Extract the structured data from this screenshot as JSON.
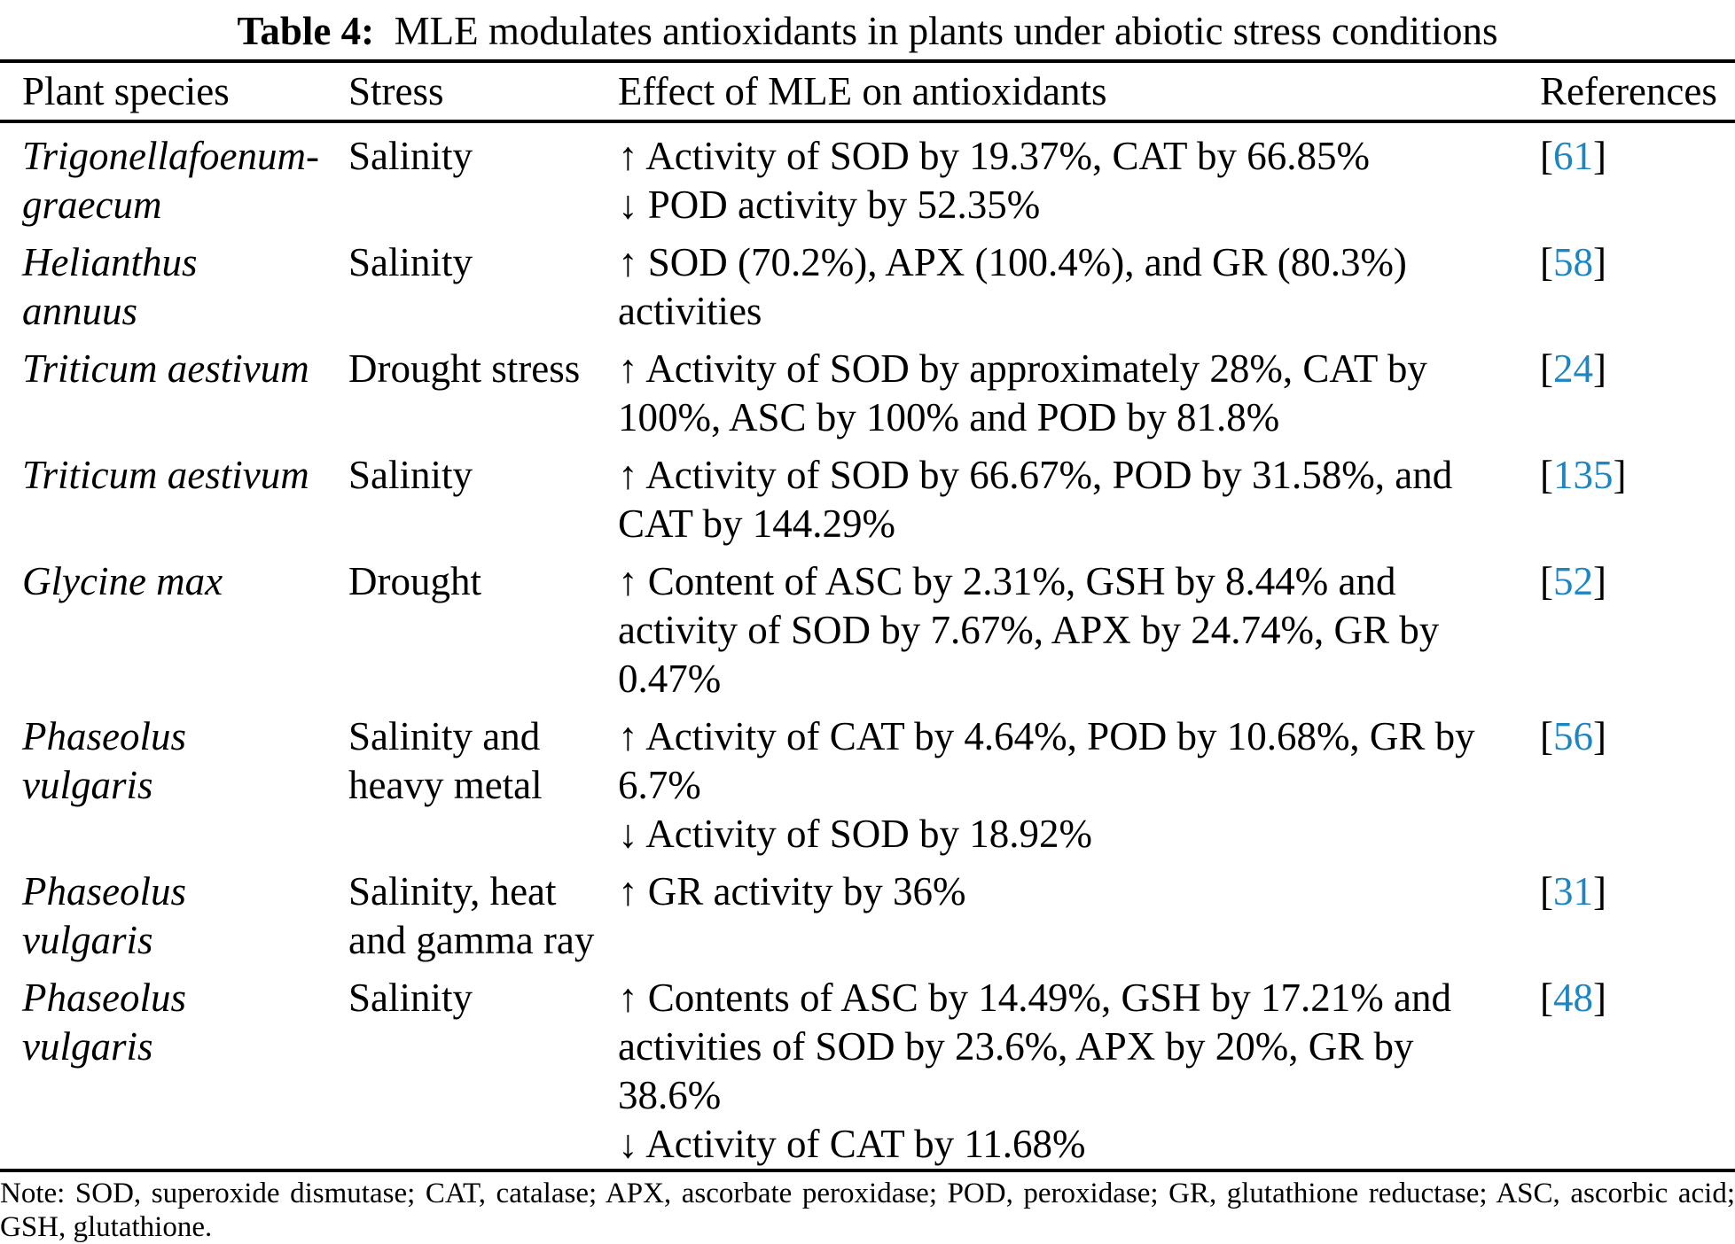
{
  "caption": {
    "label": "Table 4:",
    "text": "MLE modulates antioxidants in plants under abiotic stress conditions"
  },
  "colors": {
    "reference_blue": "#1c85c2",
    "text": "#000000",
    "background": "#ffffff",
    "rule": "#000000"
  },
  "table": {
    "headers": [
      "Plant species",
      "Stress",
      "Effect of MLE on antioxidants",
      "References"
    ],
    "rows": [
      {
        "species_lines": [
          "Trigonellafoenum-",
          "graecum"
        ],
        "stress_lines": [
          "Salinity"
        ],
        "effect_lines": [
          "↑ Activity of SOD by 19.37%, CAT by 66.85%",
          "↓ POD activity by 52.35%"
        ],
        "reference": "61"
      },
      {
        "species_lines": [
          "Helianthus",
          "annuus"
        ],
        "stress_lines": [
          "Salinity"
        ],
        "effect_lines": [
          "↑ SOD (70.2%), APX (100.4%), and GR (80.3%)",
          "activities"
        ],
        "reference": "58"
      },
      {
        "species_lines": [
          "Triticum aestivum"
        ],
        "stress_lines": [
          "Drought stress"
        ],
        "effect_lines": [
          "↑ Activity of SOD by approximately 28%, CAT by",
          "100%, ASC by 100% and POD by 81.8%"
        ],
        "reference": "24"
      },
      {
        "species_lines": [
          "Triticum aestivum"
        ],
        "stress_lines": [
          "Salinity"
        ],
        "effect_lines": [
          "↑ Activity of SOD by 66.67%, POD by 31.58%, and",
          "CAT by 144.29%"
        ],
        "reference": "135"
      },
      {
        "species_lines": [
          "Glycine max"
        ],
        "stress_lines": [
          "Drought"
        ],
        "effect_lines": [
          "↑ Content of ASC by 2.31%, GSH by 8.44% and",
          "activity of SOD by 7.67%, APX by 24.74%, GR by",
          "0.47%"
        ],
        "reference": "52"
      },
      {
        "species_lines": [
          "Phaseolus",
          "vulgaris"
        ],
        "stress_lines": [
          "Salinity and",
          "heavy metal"
        ],
        "effect_lines": [
          "↑ Activity of CAT by 4.64%, POD by 10.68%, GR by",
          "6.7%",
          "↓ Activity of SOD by 18.92%"
        ],
        "reference": "56"
      },
      {
        "species_lines": [
          "Phaseolus",
          "vulgaris"
        ],
        "stress_lines": [
          "Salinity, heat",
          "and gamma ray"
        ],
        "effect_lines": [
          "↑ GR activity by 36%"
        ],
        "reference": "31"
      },
      {
        "species_lines": [
          "Phaseolus",
          "vulgaris"
        ],
        "stress_lines": [
          "Salinity"
        ],
        "effect_lines": [
          "↑ Contents of ASC by 14.49%, GSH by 17.21% and",
          "activities of SOD by 23.6%, APX by 20%, GR by",
          "38.6%",
          "↓ Activity of CAT by 11.68%"
        ],
        "reference": "48"
      }
    ]
  },
  "note": {
    "line1": "Note: SOD, superoxide dismutase; CAT, catalase; APX, ascorbate peroxidase; POD, peroxidase; GR, glutathione reductase; ASC, ascorbic acid;",
    "line2": "GSH, glutathione."
  }
}
